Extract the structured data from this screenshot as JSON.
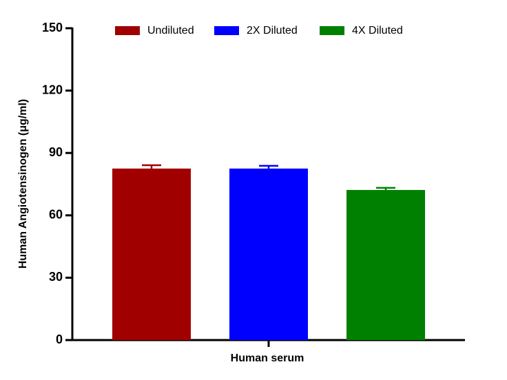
{
  "chart_data": {
    "type": "bar",
    "categories": [
      "Human serum"
    ],
    "x_label": "Human serum",
    "y_label": "Human Angiotensinogen (μg/ml)",
    "series": [
      {
        "name": "Undiluted",
        "color": "#a00000",
        "values": [
          82.5
        ],
        "errors": [
          1.6
        ]
      },
      {
        "name": "2X Diluted",
        "color": "#0000ff",
        "values": [
          82.5
        ],
        "errors": [
          1.3
        ]
      },
      {
        "name": "4X Diluted",
        "color": "#008000",
        "values": [
          72.2
        ],
        "errors": [
          1.0
        ]
      }
    ],
    "ylim": [
      0,
      150
    ],
    "yticks": [
      0,
      30,
      60,
      90,
      120,
      150
    ],
    "legend": "top",
    "grid": false
  }
}
